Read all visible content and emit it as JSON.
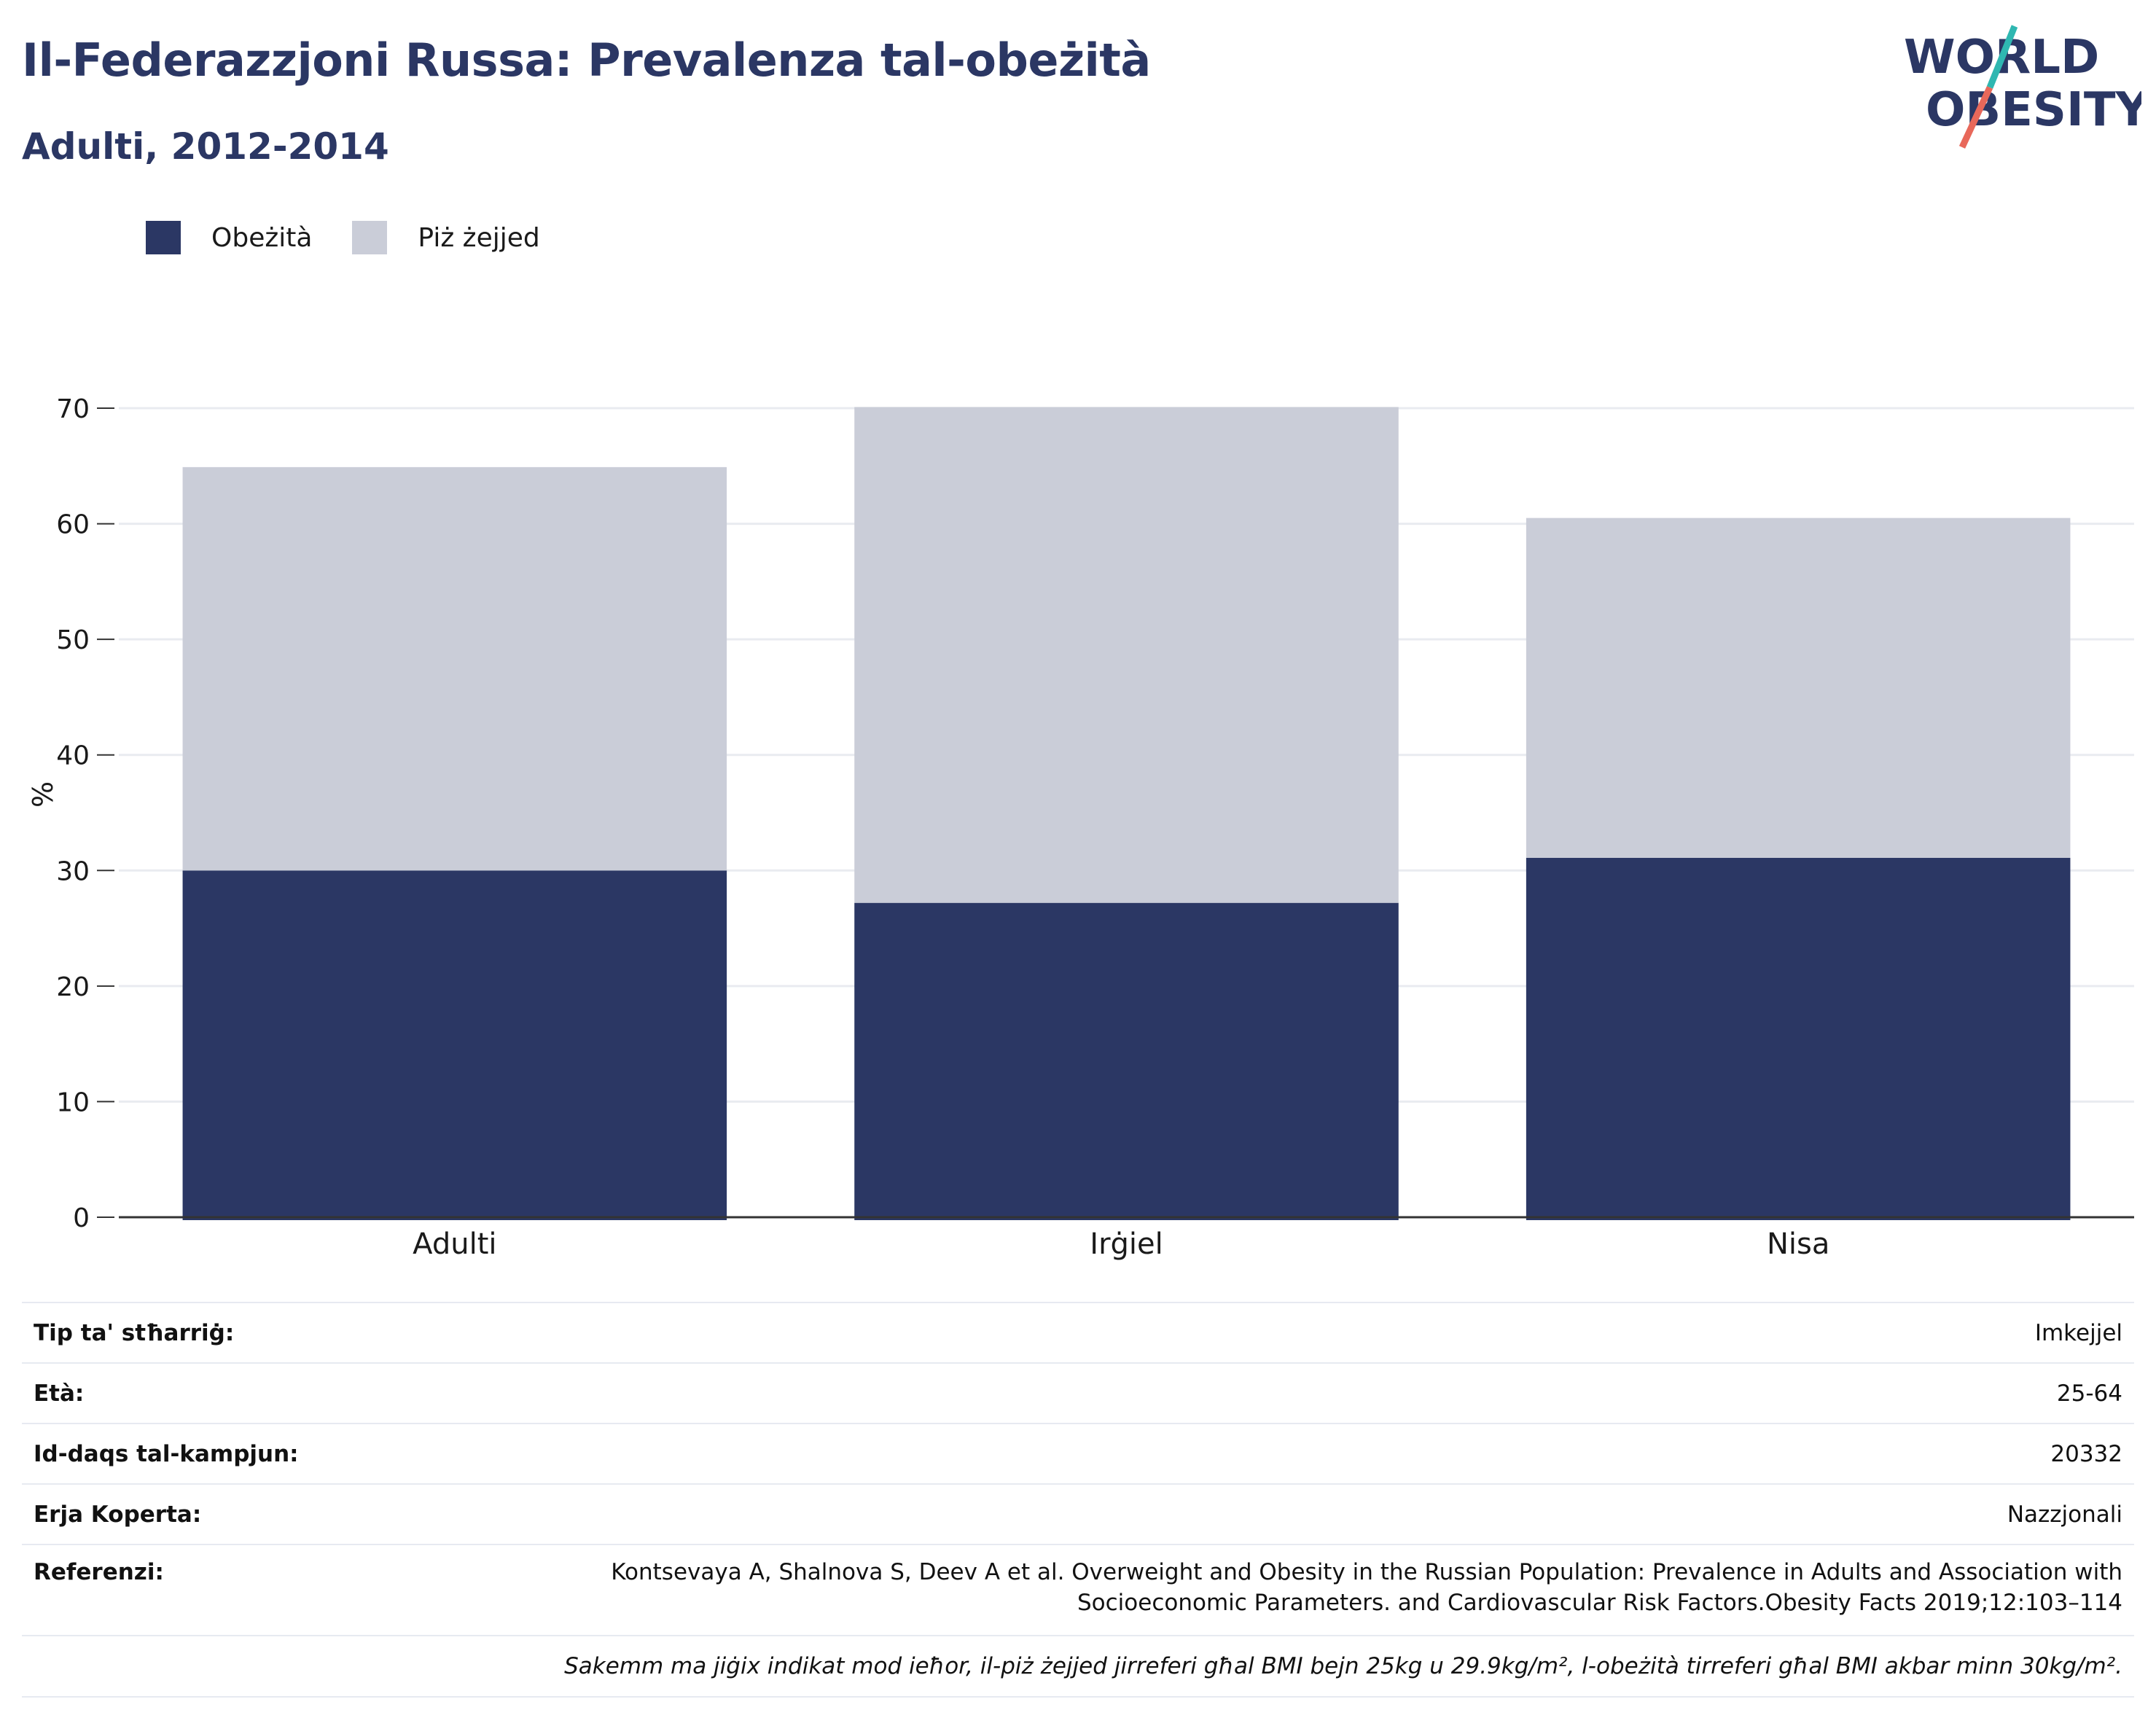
{
  "header": {
    "title": "Il-Federazzjoni Russa: Prevalenza tal-obeżità",
    "subtitle": "Adulti, 2012-2014"
  },
  "logo": {
    "line1": "WORLD",
    "line2": "OBESITY",
    "colors": {
      "text": "#2b3764",
      "slash_top": "#2fb7b1",
      "slash_bottom": "#e8685a"
    }
  },
  "legend": [
    {
      "label": "Obeżità",
      "color": "#2b3764"
    },
    {
      "label": "Piż żejjed",
      "color": "#cacdd8"
    }
  ],
  "chart_data": {
    "type": "bar",
    "stacked": true,
    "categories": [
      "Adulti",
      "Irġiel",
      "Nisa"
    ],
    "series": [
      {
        "name": "Obeżità",
        "color": "#2b3764",
        "values": [
          30.0,
          27.2,
          31.1
        ]
      },
      {
        "name": "Piż żejjed",
        "color": "#cacdd8",
        "values": [
          34.9,
          42.9,
          29.4
        ]
      }
    ],
    "ylabel": "%",
    "ylim": [
      0,
      70
    ],
    "yticks": [
      0,
      10,
      20,
      30,
      40,
      50,
      60,
      70
    ],
    "grid": true,
    "legend_position": "top-left"
  },
  "info": {
    "rows": [
      {
        "label": "Tip ta' stħarriġ:",
        "value": "Imkejjel"
      },
      {
        "label": "Età:",
        "value": "25-64"
      },
      {
        "label": "Id-daqs tal-kampjun:",
        "value": "20332"
      },
      {
        "label": "Erja Koperta:",
        "value": "Nazzjonali"
      }
    ],
    "reference_label": "Referenzi:",
    "reference_line1": "Kontsevaya A, Shalnova S, Deev A et al. Overweight and Obesity in the Russian Population: Prevalence in Adults and Association with",
    "reference_line2": "Socioeconomic Parameters. and Cardiovascular Risk Factors.Obesity Facts 2019;12:103–114",
    "note": "Sakemm ma jiġix indikat mod ieħor, il-piż żejjed jirreferi għal BMI bejn 25kg u 29.9kg/m², l-obeżità tirreferi għal BMI akbar minn 30kg/m²."
  }
}
